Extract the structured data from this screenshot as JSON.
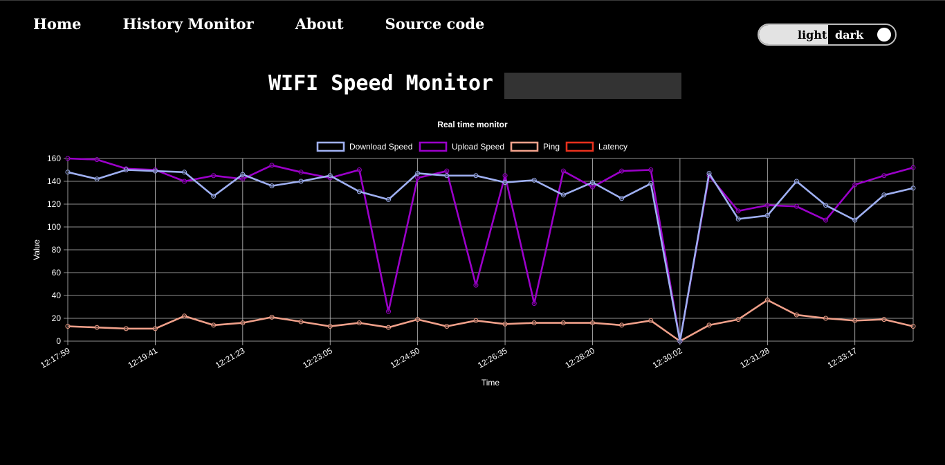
{
  "nav": {
    "items": [
      {
        "label": "Home"
      },
      {
        "label": "History Monitor"
      },
      {
        "label": "About"
      },
      {
        "label": "Source code"
      }
    ]
  },
  "theme_toggle": {
    "light_label": "light",
    "dark_label": "dark",
    "selected": "dark"
  },
  "header": {
    "title": "WIFI Speed Monitor",
    "box_value": ""
  },
  "colors": {
    "background": "#000000",
    "grid": "#bfbfbf",
    "download": "#9fb0f2",
    "upload": "#9b00c9",
    "ping": "#f0a08a",
    "latency": "#e8301c"
  },
  "chart_data": {
    "type": "line",
    "title": "Real time monitor",
    "xlabel": "Time",
    "ylabel": "Value",
    "ylim": [
      0,
      160
    ],
    "yticks": [
      0,
      20,
      40,
      60,
      80,
      100,
      120,
      140,
      160
    ],
    "legend_position": "top",
    "grid": true,
    "x_tick_labels": [
      {
        "index": 0,
        "label": "12:17:59"
      },
      {
        "index": 3,
        "label": "12:19:41"
      },
      {
        "index": 6,
        "label": "12:21:23"
      },
      {
        "index": 9,
        "label": "12:23:05"
      },
      {
        "index": 12,
        "label": "12:24:50"
      },
      {
        "index": 15,
        "label": "12:26:35"
      },
      {
        "index": 18,
        "label": "12:28:20"
      },
      {
        "index": 21,
        "label": "12:30:02"
      },
      {
        "index": 24,
        "label": "12:31:28"
      },
      {
        "index": 27,
        "label": "12:33:17"
      }
    ],
    "point_count": 30,
    "series": [
      {
        "name": "Download Speed",
        "color": "#9fb0f2",
        "values": [
          148,
          142,
          150,
          149,
          148,
          127,
          146,
          136,
          140,
          145,
          131,
          124,
          147,
          145,
          145,
          139,
          141,
          128,
          139,
          125,
          138,
          0,
          147,
          107,
          110,
          140,
          119,
          106,
          128,
          134
        ]
      },
      {
        "name": "Upload Speed",
        "color": "#9b00c9",
        "values": [
          160,
          159,
          151,
          150,
          140,
          145,
          142,
          154,
          148,
          143,
          150,
          26,
          143,
          149,
          49,
          145,
          33,
          149,
          135,
          149,
          150,
          0,
          145,
          114,
          119,
          118,
          106,
          137,
          145,
          152
        ]
      },
      {
        "name": "Ping",
        "color": "#f0a08a",
        "values": [
          13,
          12,
          11,
          11,
          22,
          14,
          16,
          21,
          17,
          13,
          16,
          12,
          19,
          13,
          18,
          15,
          16,
          16,
          16,
          14,
          18,
          0,
          14,
          19,
          36,
          23,
          20,
          18,
          19,
          13
        ]
      },
      {
        "name": "Latency",
        "color": "#e8301c",
        "values": []
      }
    ]
  }
}
